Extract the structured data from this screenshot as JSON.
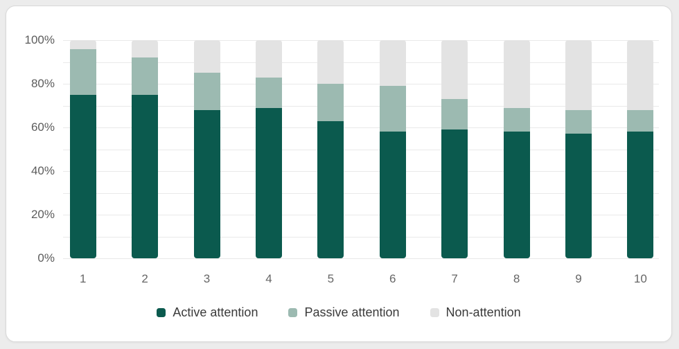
{
  "page": {
    "background_color": "#ececec",
    "card_background_color": "#ffffff",
    "card_border_color": "#d9d9d9",
    "gridline_color": "#e9e9e9"
  },
  "chart_data": {
    "type": "bar",
    "stacked": true,
    "orientation": "vertical",
    "title": "",
    "xlabel": "",
    "ylabel": "",
    "categories": [
      "1",
      "2",
      "3",
      "4",
      "5",
      "6",
      "7",
      "8",
      "9",
      "10"
    ],
    "series": [
      {
        "name": "Active attention",
        "color": "#0b5a4e",
        "values": [
          75,
          75,
          68,
          69,
          63,
          58,
          59,
          58,
          57,
          58
        ]
      },
      {
        "name": "Passive attention",
        "color": "#9cbab1",
        "values": [
          21,
          17,
          17,
          14,
          17,
          21,
          14,
          11,
          11,
          10
        ]
      },
      {
        "name": "Non-attention",
        "color": "#e3e3e3",
        "values": [
          4,
          8,
          15,
          17,
          20,
          21,
          27,
          31,
          32,
          32
        ]
      }
    ],
    "ylim": [
      0,
      100
    ],
    "y_unit": "%",
    "grid_step": 10,
    "y_ticks": [
      "100%",
      "80%",
      "60%",
      "40%",
      "20%",
      "0%"
    ],
    "y_tick_values": [
      100,
      80,
      60,
      40,
      20,
      0
    ],
    "grid": "horizontal gridlines every 10%, no vertical gridlines, no axis lines",
    "legend_position": "bottom-center"
  }
}
